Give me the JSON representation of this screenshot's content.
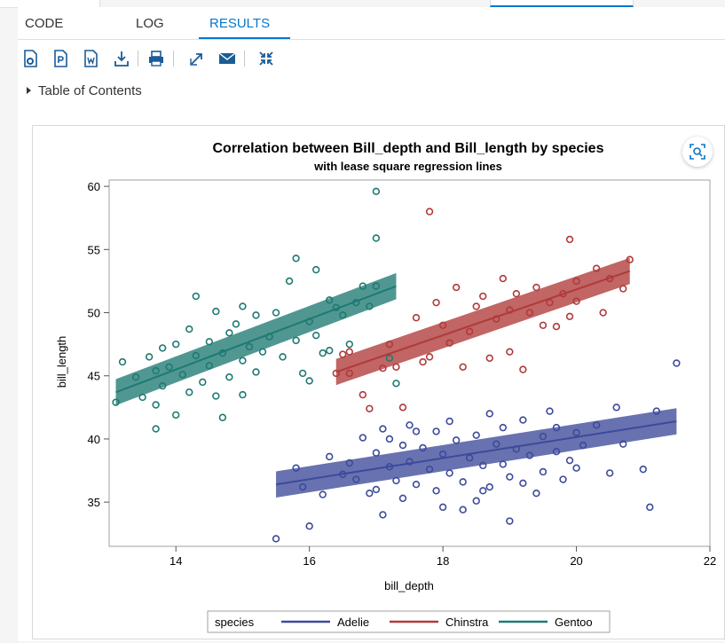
{
  "tabs": [
    "CODE",
    "LOG",
    "RESULTS"
  ],
  "active_tab": "RESULTS",
  "toc_label": "Table of Contents",
  "colors": {
    "adelie": "#3d4a9a",
    "chinstra": "#b03a3a",
    "gentoo": "#1f7a73",
    "accent": "#0378cd",
    "toolbar": "#1a5c96"
  },
  "toolbar_icons": [
    "html-report-icon",
    "pdf-report-icon",
    "word-report-icon",
    "download-icon",
    "print-icon",
    "open-new-window-icon",
    "email-icon",
    "collapse-icon"
  ],
  "chart_data": {
    "type": "scatter",
    "title": "Correlation between Bill_depth and Bill_length by species",
    "subtitle": "with lease square regression lines",
    "xlabel": "bill_depth",
    "ylabel": "bill_length",
    "xlim": [
      13,
      22
    ],
    "ylim": [
      31.5,
      60.5
    ],
    "xticks": [
      14,
      16,
      18,
      20,
      22
    ],
    "yticks": [
      35,
      40,
      45,
      50,
      55,
      60
    ],
    "grid": false,
    "legend_title": "species",
    "legend_position": "bottom",
    "series": [
      {
        "name": "Adelie",
        "color": "#3d4a9a",
        "fit": {
          "x": [
            15.5,
            21.5
          ],
          "y": [
            36.4,
            41.4
          ]
        },
        "points": [
          [
            15.5,
            32.1
          ],
          [
            15.8,
            37.7
          ],
          [
            15.9,
            36.2
          ],
          [
            16.0,
            33.1
          ],
          [
            16.2,
            35.6
          ],
          [
            16.3,
            38.6
          ],
          [
            16.5,
            37.2
          ],
          [
            16.6,
            38.1
          ],
          [
            16.7,
            36.8
          ],
          [
            16.8,
            40.1
          ],
          [
            16.9,
            35.7
          ],
          [
            17.0,
            38.9
          ],
          [
            17.0,
            36.0
          ],
          [
            17.1,
            40.8
          ],
          [
            17.1,
            34.0
          ],
          [
            17.2,
            37.8
          ],
          [
            17.3,
            36.7
          ],
          [
            17.4,
            39.5
          ],
          [
            17.4,
            35.3
          ],
          [
            17.5,
            41.1
          ],
          [
            17.5,
            38.2
          ],
          [
            17.6,
            36.4
          ],
          [
            17.7,
            39.3
          ],
          [
            17.8,
            37.6
          ],
          [
            17.9,
            40.6
          ],
          [
            17.9,
            35.9
          ],
          [
            18.0,
            38.8
          ],
          [
            18.0,
            34.6
          ],
          [
            18.1,
            41.4
          ],
          [
            18.1,
            37.3
          ],
          [
            18.2,
            39.9
          ],
          [
            18.3,
            36.6
          ],
          [
            18.3,
            34.4
          ],
          [
            18.4,
            38.5
          ],
          [
            18.5,
            40.3
          ],
          [
            18.5,
            35.1
          ],
          [
            18.6,
            37.9
          ],
          [
            18.7,
            42.0
          ],
          [
            18.7,
            36.2
          ],
          [
            18.8,
            39.6
          ],
          [
            18.9,
            38.0
          ],
          [
            18.9,
            40.9
          ],
          [
            19.0,
            37.0
          ],
          [
            19.0,
            33.5
          ],
          [
            19.1,
            39.2
          ],
          [
            19.2,
            41.5
          ],
          [
            19.2,
            36.5
          ],
          [
            19.3,
            38.7
          ],
          [
            19.4,
            35.7
          ],
          [
            19.5,
            40.2
          ],
          [
            19.5,
            37.4
          ],
          [
            19.6,
            42.2
          ],
          [
            19.7,
            39.0
          ],
          [
            19.8,
            36.8
          ],
          [
            19.9,
            38.3
          ],
          [
            20.0,
            40.5
          ],
          [
            20.0,
            37.7
          ],
          [
            20.1,
            39.5
          ],
          [
            20.3,
            41.1
          ],
          [
            20.5,
            37.3
          ],
          [
            20.6,
            42.5
          ],
          [
            20.7,
            39.6
          ],
          [
            21.0,
            37.6
          ],
          [
            21.1,
            34.6
          ],
          [
            21.2,
            42.2
          ],
          [
            21.5,
            46.0
          ],
          [
            17.6,
            40.6
          ],
          [
            18.6,
            35.9
          ],
          [
            17.2,
            40.0
          ],
          [
            19.7,
            40.9
          ]
        ]
      },
      {
        "name": "Chinstra",
        "color": "#b03a3a",
        "fit": {
          "x": [
            16.4,
            20.8
          ],
          "y": [
            45.3,
            53.3
          ]
        },
        "points": [
          [
            16.4,
            45.2
          ],
          [
            16.5,
            46.7
          ],
          [
            16.6,
            46.9
          ],
          [
            16.6,
            45.2
          ],
          [
            16.8,
            43.5
          ],
          [
            16.9,
            42.4
          ],
          [
            17.1,
            45.6
          ],
          [
            17.2,
            47.5
          ],
          [
            17.3,
            45.7
          ],
          [
            17.4,
            42.5
          ],
          [
            17.6,
            49.6
          ],
          [
            17.7,
            46.1
          ],
          [
            17.8,
            58.0
          ],
          [
            17.8,
            46.5
          ],
          [
            17.9,
            50.8
          ],
          [
            18.0,
            49.0
          ],
          [
            18.1,
            47.6
          ],
          [
            18.2,
            52.0
          ],
          [
            18.3,
            45.7
          ],
          [
            18.4,
            48.5
          ],
          [
            18.5,
            50.5
          ],
          [
            18.6,
            51.3
          ],
          [
            18.7,
            46.4
          ],
          [
            18.8,
            49.5
          ],
          [
            18.9,
            52.7
          ],
          [
            19.0,
            50.2
          ],
          [
            19.0,
            46.9
          ],
          [
            19.1,
            51.5
          ],
          [
            19.2,
            45.5
          ],
          [
            19.3,
            50.0
          ],
          [
            19.4,
            52.0
          ],
          [
            19.5,
            49.0
          ],
          [
            19.6,
            50.8
          ],
          [
            19.7,
            48.9
          ],
          [
            19.8,
            51.5
          ],
          [
            19.9,
            49.7
          ],
          [
            20.0,
            52.5
          ],
          [
            20.0,
            50.9
          ],
          [
            19.9,
            55.8
          ],
          [
            20.3,
            53.5
          ],
          [
            20.4,
            50.0
          ],
          [
            20.5,
            52.7
          ],
          [
            20.7,
            51.9
          ],
          [
            20.8,
            54.2
          ]
        ]
      },
      {
        "name": "Gentoo",
        "color": "#1f7a73",
        "fit": {
          "x": [
            13.1,
            17.3
          ],
          "y": [
            43.7,
            52.1
          ]
        },
        "points": [
          [
            13.1,
            42.9
          ],
          [
            13.2,
            46.1
          ],
          [
            13.4,
            44.9
          ],
          [
            13.5,
            43.3
          ],
          [
            13.6,
            46.5
          ],
          [
            13.7,
            45.4
          ],
          [
            13.7,
            42.7
          ],
          [
            13.8,
            47.2
          ],
          [
            13.8,
            44.2
          ],
          [
            13.9,
            45.7
          ],
          [
            14.0,
            41.9
          ],
          [
            14.0,
            47.5
          ],
          [
            14.1,
            45.1
          ],
          [
            14.2,
            48.7
          ],
          [
            14.2,
            43.7
          ],
          [
            14.3,
            46.6
          ],
          [
            14.3,
            51.3
          ],
          [
            14.4,
            44.5
          ],
          [
            14.5,
            47.7
          ],
          [
            14.5,
            45.8
          ],
          [
            14.6,
            50.1
          ],
          [
            14.6,
            43.4
          ],
          [
            14.7,
            46.8
          ],
          [
            14.8,
            48.4
          ],
          [
            14.8,
            44.9
          ],
          [
            14.9,
            49.1
          ],
          [
            15.0,
            46.2
          ],
          [
            15.0,
            50.5
          ],
          [
            15.1,
            47.3
          ],
          [
            15.2,
            45.3
          ],
          [
            15.2,
            49.8
          ],
          [
            15.3,
            46.9
          ],
          [
            15.4,
            48.1
          ],
          [
            15.5,
            50.0
          ],
          [
            15.6,
            46.5
          ],
          [
            15.7,
            52.5
          ],
          [
            15.8,
            47.8
          ],
          [
            15.8,
            54.3
          ],
          [
            15.9,
            45.2
          ],
          [
            16.0,
            49.3
          ],
          [
            16.1,
            48.2
          ],
          [
            16.1,
            53.4
          ],
          [
            16.2,
            46.8
          ],
          [
            16.3,
            51.0
          ],
          [
            16.4,
            50.4
          ],
          [
            16.5,
            49.8
          ],
          [
            16.6,
            47.5
          ],
          [
            16.7,
            50.8
          ],
          [
            16.8,
            52.1
          ],
          [
            16.9,
            50.5
          ],
          [
            17.0,
            52.1
          ],
          [
            17.0,
            55.9
          ],
          [
            17.0,
            59.6
          ],
          [
            17.2,
            46.4
          ],
          [
            17.3,
            44.4
          ],
          [
            13.7,
            40.8
          ],
          [
            14.7,
            41.7
          ],
          [
            15.0,
            43.5
          ],
          [
            16.0,
            44.6
          ],
          [
            16.3,
            47.0
          ]
        ]
      }
    ]
  }
}
